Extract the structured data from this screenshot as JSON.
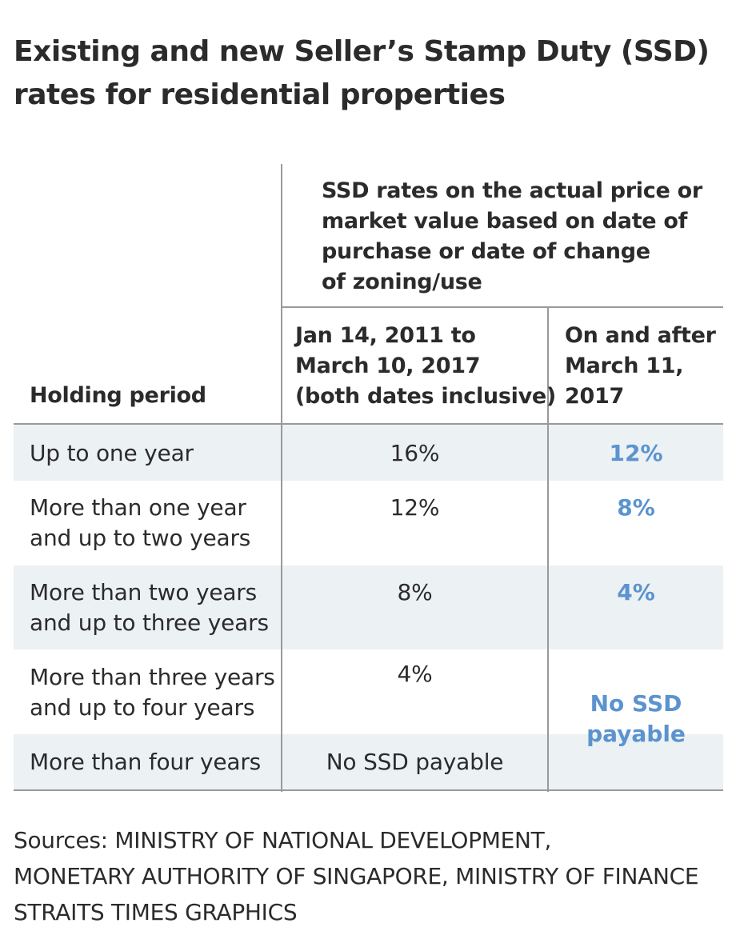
{
  "title": {
    "line1": "Existing and new Seller’s Stamp Duty (SSD)",
    "line2": "rates for residential properties"
  },
  "chart_data": {
    "type": "table",
    "group_header": [
      "SSD rates on the actual price or",
      "market value based on date of",
      "purchase or date of change",
      "of zoning/use"
    ],
    "columns": {
      "holding": "Holding period",
      "existing": [
        "Jan 14, 2011 to",
        "March 10, 2017",
        "(both dates inclusive)"
      ],
      "new": [
        "On and after",
        "March 11,",
        "2017"
      ]
    },
    "rows": [
      {
        "holding": [
          "Up to one year"
        ],
        "existing": "16%",
        "new": "12%"
      },
      {
        "holding": [
          "More than one year",
          "and up to two years"
        ],
        "existing": "12%",
        "new": "8%"
      },
      {
        "holding": [
          "More than two years",
          "and up to three years"
        ],
        "existing": "8%",
        "new": "4%"
      },
      {
        "holding": [
          "More than three years",
          "and up to four years"
        ],
        "existing": "4%",
        "new": ""
      },
      {
        "holding": [
          "More than four years"
        ],
        "existing": "No SSD payable",
        "new": ""
      }
    ],
    "merged_new_cell": [
      "No SSD",
      "payable"
    ],
    "colors": {
      "new_rate": "#5b93cf",
      "row_shade": "#ecf1f4",
      "rule": "#9a9a9a"
    }
  },
  "sources": [
    "Sources: MINISTRY OF NATIONAL DEVELOPMENT,",
    "MONETARY AUTHORITY OF SINGAPORE, MINISTRY OF FINANCE",
    "STRAITS TIMES GRAPHICS"
  ]
}
